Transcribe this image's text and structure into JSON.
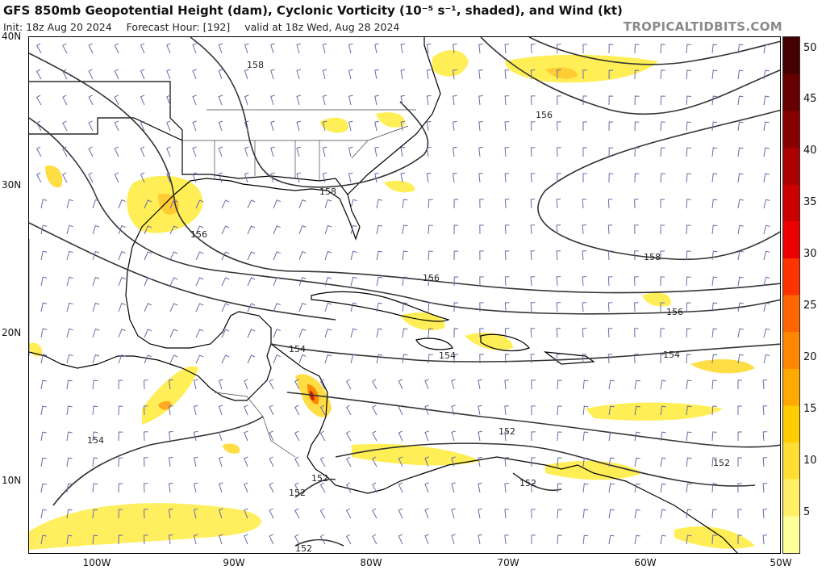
{
  "header": {
    "title": "GFS 850mb Geopotential Height (dam), Cyclonic Vorticity (10⁻⁵ s⁻¹, shaded), and Wind (kt)",
    "init": "Init: 18z Aug 20 2024",
    "forecast_hour": "Forecast Hour: [192]",
    "valid": "valid at 18z Wed, Aug 28 2024",
    "brand": "TROPICALTIDBITS.COM"
  },
  "axes": {
    "lat_labels": [
      "40N",
      "30N",
      "20N",
      "10N"
    ],
    "lon_labels": [
      "100W",
      "90W",
      "80W",
      "70W",
      "60W",
      "50W"
    ]
  },
  "colorbar": {
    "labels": [
      "50",
      "45",
      "40",
      "35",
      "30",
      "25",
      "20",
      "15",
      "10",
      "5"
    ],
    "colors": [
      "#ffff99",
      "#ffee66",
      "#ffdd33",
      "#ffcc00",
      "#ffaa00",
      "#ff8800",
      "#ff6600",
      "#ff3300",
      "#ee0000",
      "#cc0000",
      "#aa0000",
      "#880000",
      "#660000",
      "#440000"
    ]
  },
  "contours": {
    "labels": [
      "158",
      "156",
      "158",
      "156",
      "156",
      "158",
      "156",
      "154",
      "154",
      "154",
      "152",
      "152",
      "154",
      "152",
      "152",
      "152",
      "152"
    ]
  }
}
